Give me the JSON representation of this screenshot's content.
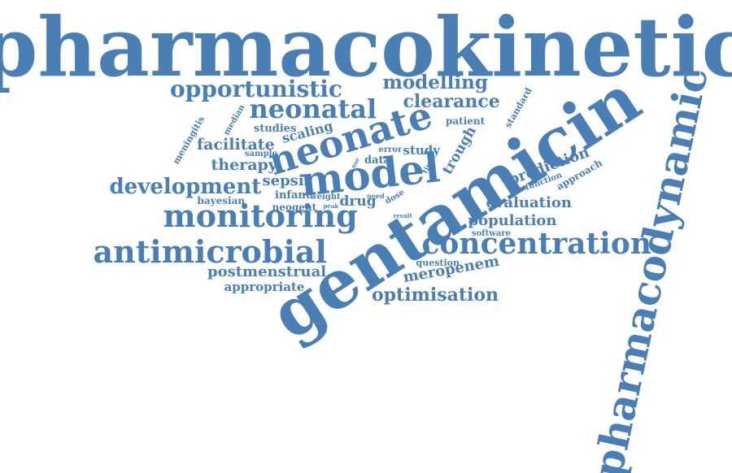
{
  "style": {
    "word_color": "#4a7fb5",
    "background": "#ffffff"
  },
  "words": [
    "pharmacokinetic",
    "gentamicin",
    "pharmacodynamic",
    "model",
    "neonate",
    "monitoring",
    "antimicrobial",
    "concentration",
    "neonatal",
    "opportunistic",
    "development",
    "modelling",
    "clearance",
    "optimisation",
    "meropenem",
    "population",
    "evaluation",
    "prediction",
    "postmenstrual",
    "appropriate",
    "facilitate",
    "therapy",
    "sepsis",
    "trough",
    "scaling",
    "study",
    "drug",
    "infant",
    "bayesian",
    "neogent",
    "studies",
    "data",
    "patient",
    "standard",
    "median",
    "meningitis",
    "sample",
    "error",
    "time",
    "use",
    "weight",
    "peak",
    "need",
    "dose",
    "result",
    "function",
    "approach",
    "software",
    "question"
  ]
}
